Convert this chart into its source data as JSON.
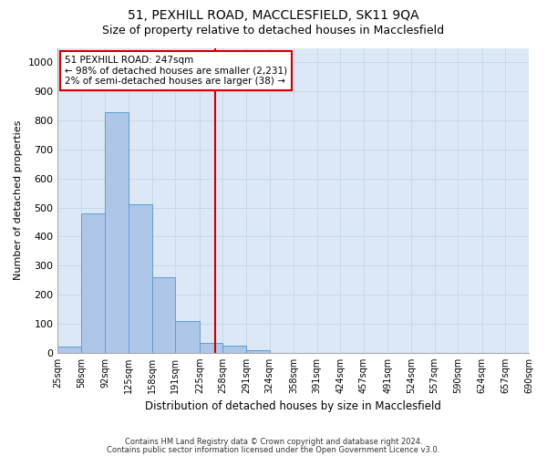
{
  "title1": "51, PEXHILL ROAD, MACCLESFIELD, SK11 9QA",
  "title2": "Size of property relative to detached houses in Macclesfield",
  "xlabel": "Distribution of detached houses by size in Macclesfield",
  "ylabel": "Number of detached properties",
  "footnote1": "Contains HM Land Registry data © Crown copyright and database right 2024.",
  "footnote2": "Contains public sector information licensed under the Open Government Licence v3.0.",
  "annotation_line1": "51 PEXHILL ROAD: 247sqm",
  "annotation_line2": "← 98% of detached houses are smaller (2,231)",
  "annotation_line3": "2% of semi-detached houses are larger (38) →",
  "property_size": 247,
  "bar_edges": [
    25,
    58,
    92,
    125,
    158,
    191,
    225,
    258,
    291,
    324,
    358,
    391,
    424,
    457,
    491,
    524,
    557,
    590,
    624,
    657,
    690
  ],
  "bar_heights": [
    20,
    480,
    830,
    510,
    260,
    110,
    35,
    25,
    10,
    0,
    0,
    0,
    0,
    0,
    0,
    0,
    0,
    0,
    0,
    0
  ],
  "bar_color": "#aec6e8",
  "bar_edge_color": "#5a9fd4",
  "vline_color": "#cc0000",
  "vline_x": 247,
  "ylim": [
    0,
    1050
  ],
  "yticks": [
    0,
    100,
    200,
    300,
    400,
    500,
    600,
    700,
    800,
    900,
    1000
  ],
  "grid_color": "#c8d8ea",
  "background_color": "#dce8f5",
  "box_color": "#cc0000",
  "title_fontsize": 10,
  "subtitle_fontsize": 9,
  "tick_label_fontsize": 7,
  "ylabel_fontsize": 8,
  "xlabel_fontsize": 8.5,
  "footnote_fontsize": 6,
  "annotation_fontsize": 7.5
}
